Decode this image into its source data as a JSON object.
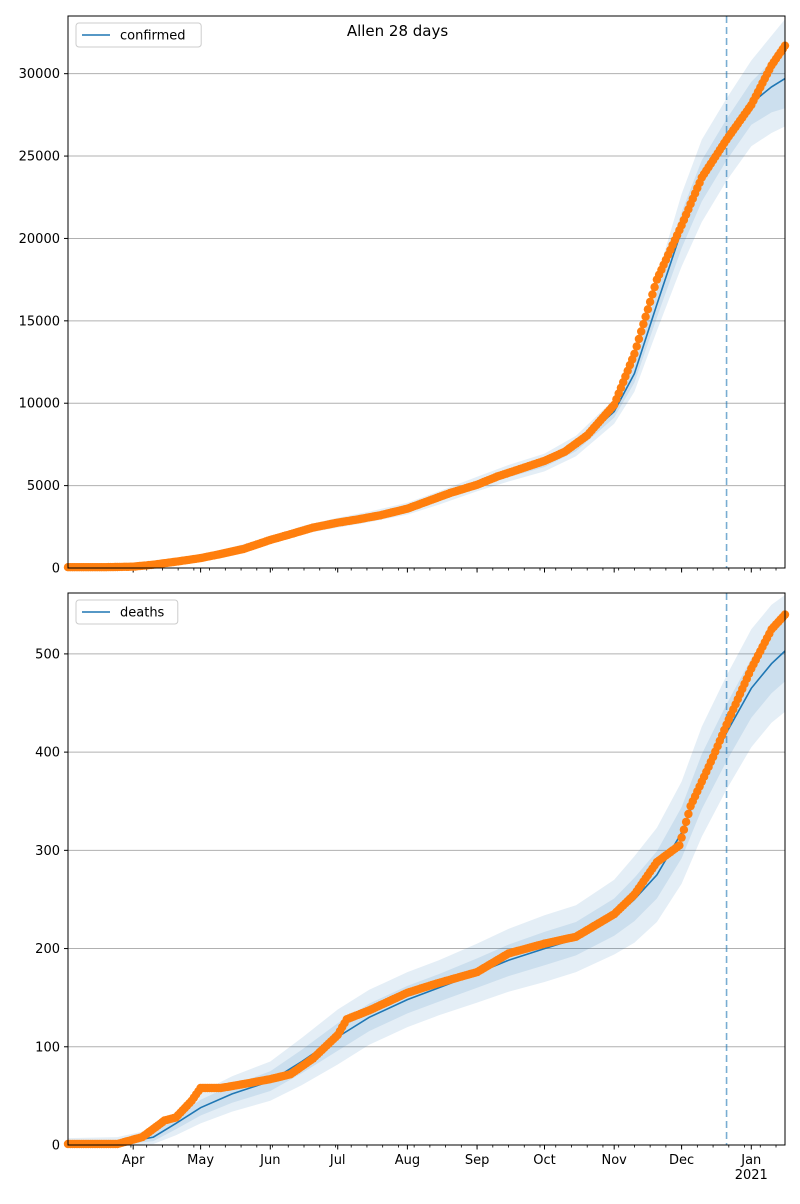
{
  "suptitle": "Allen 28 days",
  "colors": {
    "model_line": "#1f77b4",
    "observed": "#ff7f0e",
    "band": "#1f77b4",
    "grid": "#b0b0b0",
    "forecast_line": "#1f77b4"
  },
  "chart_data": [
    {
      "type": "line",
      "title": "",
      "xlabel": "",
      "ylabel": "",
      "x_tick_labels": [
        "Apr",
        "May",
        "Jun",
        "Jul",
        "Aug",
        "Sep",
        "Oct",
        "Nov",
        "Dec",
        "Jan\n2021"
      ],
      "x_ticks": [
        "2020-04-01",
        "2020-05-01",
        "2020-06-01",
        "2020-07-01",
        "2020-08-01",
        "2020-09-01",
        "2020-10-01",
        "2020-11-01",
        "2020-12-01",
        "2021-01-01"
      ],
      "xlim": [
        "2020-03-03",
        "2021-01-16"
      ],
      "ylim": [
        0,
        33500
      ],
      "y_ticks": [
        0,
        5000,
        10000,
        15000,
        20000,
        25000,
        30000
      ],
      "grid": "horizontal",
      "legend": "top-left",
      "forecast_start": "2020-12-21",
      "series": [
        {
          "name": "confirmed",
          "kind": "model",
          "x": [
            "2020-03-03",
            "2020-03-15",
            "2020-04-01",
            "2020-04-15",
            "2020-05-01",
            "2020-05-15",
            "2020-06-01",
            "2020-06-15",
            "2020-07-01",
            "2020-07-15",
            "2020-08-01",
            "2020-08-15",
            "2020-09-01",
            "2020-09-15",
            "2020-10-01",
            "2020-10-15",
            "2020-11-01",
            "2020-11-10",
            "2020-11-20",
            "2020-12-01",
            "2020-12-10",
            "2020-12-21",
            "2021-01-01",
            "2021-01-10",
            "2021-01-16"
          ],
          "y": [
            0,
            0,
            60,
            300,
            700,
            1100,
            1700,
            2300,
            2750,
            3100,
            3600,
            4250,
            5100,
            5750,
            6400,
            7400,
            9500,
            11800,
            16000,
            20500,
            23500,
            26000,
            28200,
            29200,
            29700
          ],
          "bands": [
            {
              "lower": [
                0,
                0,
                40,
                260,
                640,
                1020,
                1600,
                2180,
                2600,
                2940,
                3420,
                4050,
                4880,
                5500,
                6130,
                7090,
                9130,
                11250,
                15200,
                19400,
                22250,
                24750,
                26900,
                27650,
                27900
              ],
              "upper": [
                0,
                0,
                80,
                340,
                760,
                1180,
                1800,
                2420,
                2900,
                3260,
                3780,
                4450,
                5320,
                6000,
                6670,
                7710,
                9870,
                12350,
                16800,
                21600,
                24750,
                27250,
                29500,
                30750,
                31500
              ]
            },
            {
              "lower": [
                0,
                0,
                25,
                220,
                580,
                940,
                1500,
                2060,
                2450,
                2780,
                3240,
                3850,
                4660,
                5250,
                5860,
                6780,
                8760,
                10700,
                14400,
                18300,
                21000,
                23500,
                25600,
                26400,
                26800
              ],
              "upper": [
                0,
                0,
                95,
                380,
                820,
                1260,
                1900,
                2540,
                3050,
                3420,
                3960,
                4650,
                5540,
                6250,
                6940,
                8020,
                10240,
                12900,
                17600,
                22700,
                26000,
                28500,
                30800,
                32300,
                33300
              ]
            }
          ]
        },
        {
          "name": "confirmed-observed",
          "kind": "observed",
          "x": [
            "2020-03-03",
            "2020-03-20",
            "2020-04-01",
            "2020-04-10",
            "2020-04-20",
            "2020-05-01",
            "2020-05-10",
            "2020-05-20",
            "2020-06-01",
            "2020-06-10",
            "2020-06-20",
            "2020-07-01",
            "2020-07-10",
            "2020-07-20",
            "2020-08-01",
            "2020-08-10",
            "2020-08-20",
            "2020-09-01",
            "2020-09-10",
            "2020-09-20",
            "2020-10-01",
            "2020-10-10",
            "2020-10-20",
            "2020-11-01",
            "2020-11-10",
            "2020-11-20",
            "2020-12-01",
            "2020-12-10",
            "2020-12-21",
            "2021-01-01",
            "2021-01-10",
            "2021-01-16"
          ],
          "y": [
            50,
            50,
            80,
            200,
            380,
            600,
            850,
            1150,
            1700,
            2050,
            2450,
            2750,
            2950,
            3200,
            3600,
            4050,
            4550,
            5050,
            5550,
            6000,
            6500,
            7050,
            8050,
            9900,
            13000,
            17500,
            20800,
            23700,
            26000,
            28100,
            30500,
            31700
          ]
        }
      ]
    },
    {
      "type": "line",
      "title": "",
      "xlabel": "",
      "ylabel": "",
      "x_tick_labels": [
        "Apr",
        "May",
        "Jun",
        "Jul",
        "Aug",
        "Sep",
        "Oct",
        "Nov",
        "Dec",
        "Jan\n2021"
      ],
      "x_ticks": [
        "2020-04-01",
        "2020-05-01",
        "2020-06-01",
        "2020-07-01",
        "2020-08-01",
        "2020-09-01",
        "2020-10-01",
        "2020-11-01",
        "2020-12-01",
        "2021-01-01"
      ],
      "xlim": [
        "2020-03-03",
        "2021-01-16"
      ],
      "ylim": [
        0,
        562
      ],
      "y_ticks": [
        0,
        100,
        200,
        300,
        400,
        500
      ],
      "grid": "horizontal",
      "legend": "top-left",
      "forecast_start": "2020-12-21",
      "series": [
        {
          "name": "deaths",
          "kind": "model",
          "x": [
            "2020-03-03",
            "2020-03-25",
            "2020-04-10",
            "2020-04-20",
            "2020-05-01",
            "2020-05-15",
            "2020-06-01",
            "2020-06-15",
            "2020-07-01",
            "2020-07-15",
            "2020-08-01",
            "2020-08-15",
            "2020-09-01",
            "2020-09-15",
            "2020-10-01",
            "2020-10-15",
            "2020-11-01",
            "2020-11-10",
            "2020-11-20",
            "2020-12-01",
            "2020-12-10",
            "2020-12-21",
            "2021-01-01",
            "2021-01-10",
            "2021-01-16"
          ],
          "y": [
            0,
            1,
            8,
            22,
            38,
            52,
            65,
            85,
            110,
            130,
            148,
            160,
            175,
            188,
            200,
            210,
            232,
            250,
            275,
            318,
            370,
            420,
            465,
            490,
            503
          ],
          "bands": [
            {
              "lower": [
                0,
                0,
                4,
                16,
                30,
                43,
                55,
                73,
                96,
                116,
                134,
                146,
                160,
                172,
                183,
                193,
                213,
                228,
                251,
                292,
                342,
                391,
                435,
                460,
                472
              ],
              "upper": [
                3,
                4,
                12,
                28,
                46,
                61,
                75,
                97,
                124,
                144,
                162,
                174,
                190,
                204,
                217,
                227,
                251,
                272,
                299,
                344,
                398,
                449,
                495,
                520,
                534
              ]
            },
            {
              "lower": [
                0,
                0,
                1,
                10,
                22,
                34,
                45,
                61,
                82,
                102,
                120,
                132,
                145,
                156,
                166,
                176,
                194,
                206,
                227,
                266,
                314,
                362,
                405,
                430,
                441
              ],
              "upper": [
                7,
                8,
                16,
                34,
                54,
                70,
                85,
                109,
                138,
                158,
                176,
                188,
                205,
                220,
                234,
                244,
                270,
                294,
                323,
                370,
                426,
                478,
                525,
                550,
                560
              ]
            }
          ]
        },
        {
          "name": "deaths-observed",
          "kind": "observed",
          "x": [
            "2020-03-03",
            "2020-03-25",
            "2020-04-05",
            "2020-04-15",
            "2020-04-20",
            "2020-04-27",
            "2020-05-01",
            "2020-05-10",
            "2020-05-20",
            "2020-06-01",
            "2020-06-10",
            "2020-06-20",
            "2020-07-01",
            "2020-07-05",
            "2020-07-15",
            "2020-08-01",
            "2020-08-15",
            "2020-09-01",
            "2020-09-15",
            "2020-10-01",
            "2020-10-15",
            "2020-11-01",
            "2020-11-10",
            "2020-11-20",
            "2020-11-30",
            "2020-12-05",
            "2020-12-15",
            "2020-12-21",
            "2021-01-01",
            "2021-01-10",
            "2021-01-16"
          ],
          "y": [
            1,
            1,
            8,
            25,
            28,
            45,
            58,
            58,
            62,
            67,
            72,
            88,
            112,
            128,
            137,
            155,
            165,
            176,
            195,
            205,
            212,
            235,
            255,
            288,
            305,
            345,
            395,
            428,
            485,
            525,
            540
          ]
        }
      ]
    }
  ]
}
